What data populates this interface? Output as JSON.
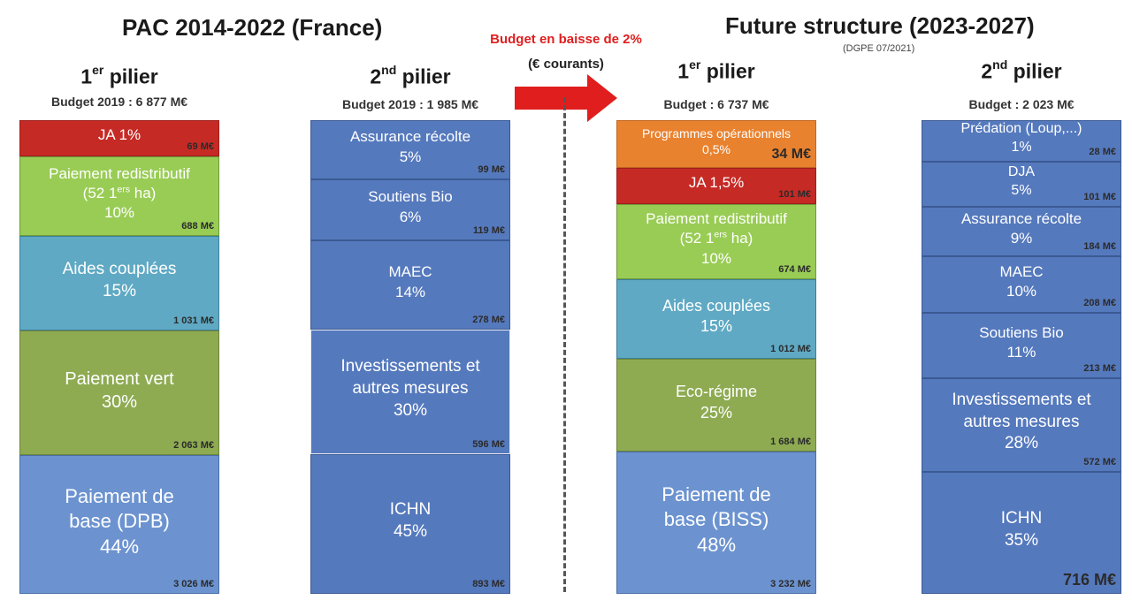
{
  "left_title": "PAC 2014-2022 (France)",
  "right_title": "Future structure (2023-2027)",
  "right_source": "(DGPE 07/2021)",
  "arrow": {
    "line1": "Budget en baisse de 2%",
    "line2": "(€ courants)",
    "color": "#e01e1e"
  },
  "columns": [
    {
      "pillar_num": "1",
      "pillar_sup": "er",
      "pillar_text": " pilier",
      "budget": "Budget 2019 : 6 877 M€",
      "blocks": [
        {
          "lines": [
            "JA 1%"
          ],
          "amount": "69 M€",
          "color": "red"
        },
        {
          "lines": [
            "Paiement redistributif",
            "(52 1ers ha)",
            "10%"
          ],
          "amount": "688 M€",
          "color": "green"
        },
        {
          "lines": [
            "Aides couplées",
            "15%"
          ],
          "amount": "1 031 M€",
          "color": "teal"
        },
        {
          "lines": [
            "Paiement vert",
            "30%"
          ],
          "amount": "2 063 M€",
          "color": "olive"
        },
        {
          "lines": [
            "Paiement de",
            "base (DPB)",
            "44%"
          ],
          "amount": "3 026 M€",
          "color": "lblue"
        }
      ]
    },
    {
      "pillar_num": "2",
      "pillar_sup": "nd",
      "pillar_text": " pilier",
      "budget": "Budget 2019 : 1 985 M€",
      "blocks": [
        {
          "lines": [
            "Assurance récolte",
            "5%"
          ],
          "amount": "99 M€",
          "color": "blue"
        },
        {
          "lines": [
            "Soutiens Bio",
            "6%"
          ],
          "amount": "119 M€",
          "color": "blue"
        },
        {
          "lines": [
            "MAEC",
            "14%"
          ],
          "amount": "278 M€",
          "color": "blue"
        },
        {
          "lines": [
            "Investissements et",
            "autres mesures",
            "30%"
          ],
          "amount": "596 M€",
          "color": "bluew"
        },
        {
          "lines": [
            "ICHN",
            "45%"
          ],
          "amount": "893 M€",
          "color": "blue"
        }
      ]
    },
    {
      "pillar_num": "1",
      "pillar_sup": "er",
      "pillar_text": " pilier",
      "budget": "Budget : 6 737 M€",
      "blocks": [
        {
          "lines": [
            "Programmes opérationnels",
            "0,5%"
          ],
          "amount": "34 M€",
          "color": "orange"
        },
        {
          "lines": [
            "JA 1,5%"
          ],
          "amount": "101 M€",
          "color": "red"
        },
        {
          "lines": [
            "Paiement redistributif",
            "(52 1ers ha)",
            "10%"
          ],
          "amount": "674 M€",
          "color": "green"
        },
        {
          "lines": [
            "Aides couplées",
            "15%"
          ],
          "amount": "1 012 M€",
          "color": "teal"
        },
        {
          "lines": [
            "Eco-régime",
            "25%"
          ],
          "amount": "1 684 M€",
          "color": "olive"
        },
        {
          "lines": [
            "Paiement de",
            "base (BISS)",
            "48%"
          ],
          "amount": "3 232 M€",
          "color": "lblue"
        }
      ]
    },
    {
      "pillar_num": "2",
      "pillar_sup": "nd",
      "pillar_text": " pilier",
      "budget": "Budget : 2 023 M€",
      "blocks": [
        {
          "lines": [
            "Prédation (Loup,...)",
            "1%"
          ],
          "amount": "28 M€",
          "color": "blue"
        },
        {
          "lines": [
            "DJA",
            "5%"
          ],
          "amount": "101 M€",
          "color": "blue"
        },
        {
          "lines": [
            "Assurance récolte",
            "9%"
          ],
          "amount": "184 M€",
          "color": "blue"
        },
        {
          "lines": [
            "MAEC",
            "10%"
          ],
          "amount": "208 M€",
          "color": "blue"
        },
        {
          "lines": [
            "Soutiens Bio",
            "11%"
          ],
          "amount": "213 M€",
          "color": "blue"
        },
        {
          "lines": [
            "Investissements et",
            "autres mesures",
            "28%"
          ],
          "amount": "572 M€",
          "color": "blue"
        },
        {
          "lines": [
            "ICHN",
            "35%"
          ],
          "amount": "716 M€",
          "color": "blue"
        }
      ]
    }
  ]
}
